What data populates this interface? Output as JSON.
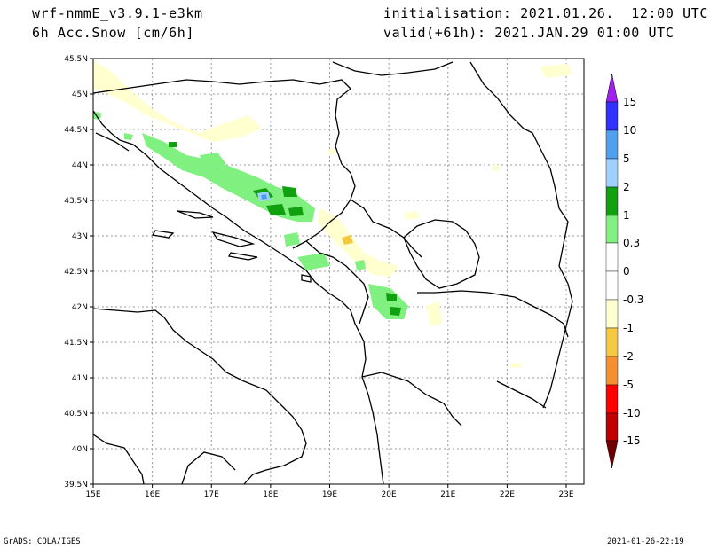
{
  "header": {
    "model": "wrf-nmmE_v3.9.1-e3km",
    "field": "6h Acc.Snow [cm/6h]",
    "init": "initialisation: 2021.01.26.  12:00 UTC",
    "valid": "valid(+61h): 2021.JAN.29 01:00 UTC"
  },
  "footer": {
    "credit": "GrADS: COLA/IGES",
    "timestamp": "2021-01-26-22:19"
  },
  "map": {
    "lat_ticks": [
      "45.5N",
      "45N",
      "44.5N",
      "44N",
      "43.5N",
      "43N",
      "42.5N",
      "42N",
      "41.5N",
      "41N",
      "40.5N",
      "40N",
      "39.5N"
    ],
    "lon_ticks": [
      "15E",
      "16E",
      "17E",
      "18E",
      "19E",
      "20E",
      "21E",
      "22E",
      "23E"
    ],
    "extent": {
      "lon": [
        15,
        23.3
      ],
      "lat": [
        39.5,
        45.5
      ]
    }
  },
  "colorbar": {
    "labels": [
      "15",
      "10",
      "5",
      "2",
      "1",
      "0.3",
      "0",
      "-0.3",
      "-1",
      "-2",
      "-5",
      "-10",
      "-15"
    ],
    "colors": [
      "#3030ff",
      "#50a0f0",
      "#a0d0ff",
      "#10a010",
      "#80f080",
      "#ffffff",
      "#ffffff",
      "#ffffd0",
      "#f5c840",
      "#f59030",
      "#ff0000",
      "#c00000",
      "#800000"
    ],
    "top_arrow_color": "#a020f0",
    "bottom_arrow_color": "#700000"
  }
}
